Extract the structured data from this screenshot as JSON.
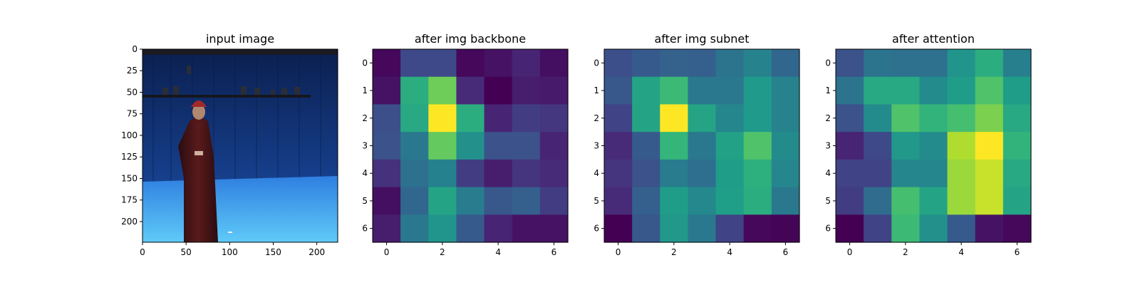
{
  "chart_data": [
    {
      "type": "image",
      "title": "input image",
      "xlim": [
        0,
        224
      ],
      "ylim": [
        0,
        224
      ],
      "x_ticks": [
        0,
        50,
        100,
        150,
        200
      ],
      "y_ticks": [
        0,
        25,
        50,
        75,
        100,
        125,
        150,
        175,
        200
      ],
      "y_inverted": true,
      "scene": "person in dark red dress standing in a blue motion-capture studio"
    },
    {
      "type": "heatmap",
      "title": "after img backbone",
      "colormap": "viridis",
      "x_ticks": [
        0,
        2,
        4,
        6
      ],
      "y_ticks": [
        0,
        1,
        2,
        3,
        4,
        5,
        6
      ],
      "xlim": [
        -0.5,
        6.5
      ],
      "ylim": [
        -0.5,
        6.5
      ],
      "values": [
        [
          0.02,
          0.22,
          0.22,
          0.02,
          0.05,
          0.1,
          0.04
        ],
        [
          0.05,
          0.62,
          0.78,
          0.12,
          0.0,
          0.08,
          0.07
        ],
        [
          0.24,
          0.6,
          1.0,
          0.62,
          0.1,
          0.18,
          0.16
        ],
        [
          0.25,
          0.4,
          0.76,
          0.5,
          0.25,
          0.25,
          0.1
        ],
        [
          0.14,
          0.37,
          0.44,
          0.18,
          0.08,
          0.15,
          0.12
        ],
        [
          0.04,
          0.33,
          0.58,
          0.42,
          0.27,
          0.3,
          0.18
        ],
        [
          0.08,
          0.4,
          0.52,
          0.28,
          0.1,
          0.05,
          0.05
        ]
      ]
    },
    {
      "type": "heatmap",
      "title": "after img subnet",
      "colormap": "viridis",
      "x_ticks": [
        0,
        2,
        4,
        6
      ],
      "y_ticks": [
        0,
        1,
        2,
        3,
        4,
        5,
        6
      ],
      "xlim": [
        -0.5,
        6.5
      ],
      "ylim": [
        -0.5,
        6.5
      ],
      "values": [
        [
          0.24,
          0.28,
          0.31,
          0.3,
          0.38,
          0.45,
          0.33
        ],
        [
          0.27,
          0.58,
          0.68,
          0.4,
          0.4,
          0.54,
          0.45
        ],
        [
          0.2,
          0.58,
          1.0,
          0.58,
          0.46,
          0.54,
          0.45
        ],
        [
          0.12,
          0.28,
          0.66,
          0.4,
          0.57,
          0.72,
          0.48
        ],
        [
          0.15,
          0.25,
          0.42,
          0.36,
          0.55,
          0.63,
          0.46
        ],
        [
          0.12,
          0.3,
          0.55,
          0.47,
          0.56,
          0.62,
          0.4
        ],
        [
          0.0,
          0.27,
          0.53,
          0.4,
          0.2,
          0.02,
          0.01
        ]
      ]
    },
    {
      "type": "heatmap",
      "title": "after attention",
      "colormap": "viridis",
      "x_ticks": [
        0,
        2,
        4,
        6
      ],
      "y_ticks": [
        0,
        1,
        2,
        3,
        4,
        5,
        6
      ],
      "xlim": [
        -0.5,
        6.5
      ],
      "ylim": [
        -0.5,
        6.5
      ],
      "values": [
        [
          0.25,
          0.38,
          0.37,
          0.37,
          0.52,
          0.62,
          0.43
        ],
        [
          0.38,
          0.6,
          0.6,
          0.48,
          0.55,
          0.72,
          0.55
        ],
        [
          0.25,
          0.48,
          0.72,
          0.65,
          0.7,
          0.8,
          0.6
        ],
        [
          0.1,
          0.22,
          0.53,
          0.48,
          0.88,
          1.0,
          0.65
        ],
        [
          0.2,
          0.2,
          0.46,
          0.46,
          0.85,
          0.92,
          0.6
        ],
        [
          0.18,
          0.35,
          0.7,
          0.58,
          0.85,
          0.92,
          0.58
        ],
        [
          0.0,
          0.2,
          0.68,
          0.5,
          0.28,
          0.05,
          0.02
        ]
      ]
    }
  ]
}
